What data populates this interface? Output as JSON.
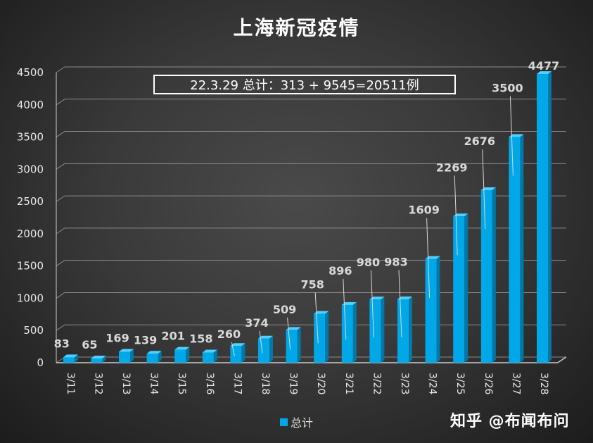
{
  "title": "上海新冠疫情",
  "note": "22.3.29 总计：313 + 9545=20511例",
  "watermark": "知乎 @布闻布问",
  "legend": {
    "label": "总计"
  },
  "colors": {
    "bar": "#00a8e8",
    "bar_top": "#4fd0ff",
    "bar_side": "#0078a8",
    "axis": "#cccccc",
    "grid": "#8a8a8a"
  },
  "chart_data": {
    "type": "bar",
    "title": "上海新冠疫情",
    "categories": [
      "3/11",
      "3/12",
      "3/13",
      "3/14",
      "3/15",
      "3/16",
      "3/17",
      "3/18",
      "3/19",
      "3/20",
      "3/21",
      "3/22",
      "3/23",
      "3/24",
      "3/25",
      "3/26",
      "3/27",
      "3/28"
    ],
    "series": [
      {
        "name": "总计",
        "values": [
          83,
          65,
          169,
          139,
          201,
          158,
          260,
          374,
          509,
          758,
          896,
          980,
          983,
          1609,
          2269,
          2676,
          3500,
          4477
        ]
      }
    ],
    "ylim": [
      0,
      4500
    ],
    "yticks": [
      0,
      500,
      1000,
      1500,
      2000,
      2500,
      3000,
      3500,
      4000,
      4500
    ],
    "grid": true,
    "legend_position": "bottom"
  }
}
